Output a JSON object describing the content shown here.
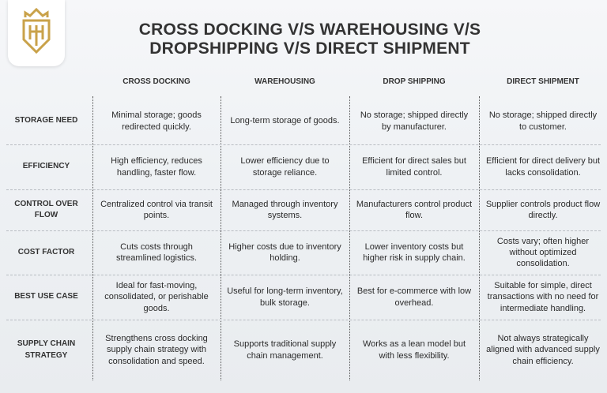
{
  "header": {
    "title_lines": [
      "CROSS DOCKING V/S WAREHOUSING V/S",
      "DROPSHIPPING V/S DIRECT SHIPMENT"
    ]
  },
  "table": {
    "columns": [
      "CROSS DOCKING",
      "WAREHOUSING",
      "DROP SHIPPING",
      "DIRECT SHIPMENT"
    ],
    "rows": [
      {
        "label": "STORAGE NEED",
        "cells": [
          "Minimal storage; goods redirected quickly.",
          "Long-term storage of goods.",
          "No storage; shipped directly by manufacturer.",
          "No storage; shipped directly to customer."
        ]
      },
      {
        "label": "EFFICIENCY",
        "cells": [
          "High efficiency, reduces handling, faster flow.",
          "Lower efficiency due to storage reliance.",
          "Efficient for direct sales but limited control.",
          "Efficient for direct delivery but lacks consolidation."
        ]
      },
      {
        "label": "CONTROL OVER FLOW",
        "cells": [
          "Centralized control via transit points.",
          "Managed through inventory systems.",
          "Manufacturers control product flow.",
          "Supplier controls product flow directly."
        ]
      },
      {
        "label": "COST FACTOR",
        "cells": [
          "Cuts costs through streamlined logistics.",
          "Higher costs due to inventory holding.",
          "Lower inventory costs but higher risk in supply chain.",
          "Costs vary; often higher without optimized consolidation."
        ]
      },
      {
        "label": "BEST USE CASE",
        "cells": [
          "Ideal for fast-moving, consolidated, or perishable goods.",
          "Useful for long-term inventory, bulk storage.",
          "Best for e-commerce with low overhead.",
          "Suitable for simple, direct transactions with no need for intermediate handling."
        ]
      },
      {
        "label": "SUPPLY CHAIN STRATEGY",
        "cells": [
          "Strengthens cross docking supply chain strategy with consolidation and speed.",
          "Supports traditional supply chain management.",
          "Works as a lean model but with less flexibility.",
          "Not always strategically aligned with advanced supply chain efficiency."
        ]
      }
    ]
  }
}
